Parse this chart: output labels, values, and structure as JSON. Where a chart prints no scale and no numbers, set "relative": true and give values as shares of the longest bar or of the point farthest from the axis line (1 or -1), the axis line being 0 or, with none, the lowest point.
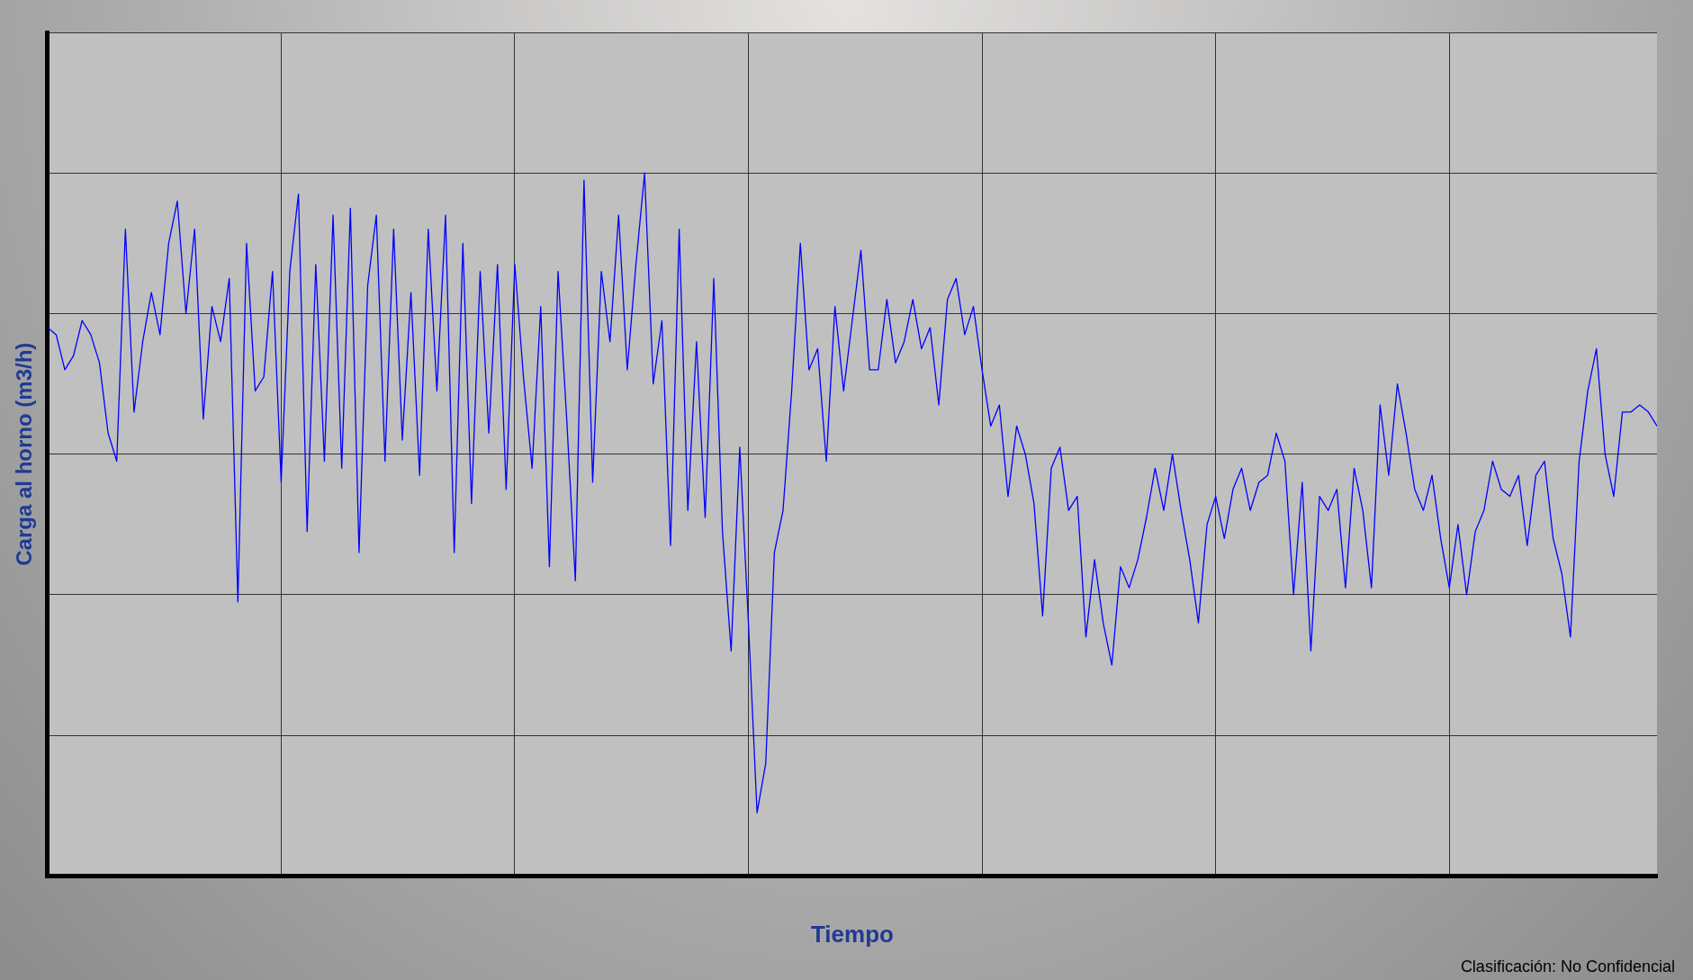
{
  "chart_data": {
    "type": "line",
    "relative": true,
    "xlabel": "Tiempo",
    "ylabel": "Carga al horno (m3/h)",
    "grid": true,
    "legend": false,
    "marker": "none",
    "line_style": "solid",
    "annotations": [
      "Clasificación: No Confidencial"
    ],
    "categories": [
      null,
      null,
      null,
      null,
      null,
      null,
      null,
      null,
      null,
      null,
      null,
      null,
      null,
      null,
      null,
      null,
      null,
      null,
      null,
      null,
      null,
      null,
      null,
      null,
      null,
      null,
      null,
      null,
      null,
      null,
      null,
      null,
      null,
      null,
      null,
      null,
      null,
      null,
      null,
      null,
      null,
      null,
      null,
      null,
      null,
      null,
      null,
      null,
      null,
      null,
      null,
      null,
      null,
      null,
      null,
      null,
      null,
      null,
      null,
      null,
      null,
      null,
      null,
      null,
      null,
      null,
      null,
      null,
      null,
      null,
      null,
      null,
      null,
      null,
      null,
      null,
      null,
      null,
      null,
      null,
      null,
      null,
      null,
      null,
      null,
      null,
      null,
      null,
      null,
      null,
      null,
      null,
      null,
      null,
      null,
      null,
      null,
      null,
      null,
      null,
      null,
      null,
      null,
      null,
      null,
      null,
      null,
      null,
      null,
      null,
      null,
      null,
      null,
      null,
      null,
      null,
      null,
      null,
      null,
      null,
      null,
      null,
      null,
      null,
      null,
      null,
      null,
      null,
      null,
      null,
      null,
      null,
      null,
      null,
      null,
      null,
      null,
      null,
      null,
      null,
      null,
      null,
      null,
      null,
      null,
      null,
      null,
      null,
      null,
      null,
      null,
      null,
      null,
      null,
      null,
      null,
      null,
      null,
      null,
      null,
      null,
      null,
      null,
      null,
      null,
      null,
      null,
      null,
      null,
      null,
      null,
      null,
      null,
      null,
      null,
      null,
      null,
      null,
      null,
      null,
      null,
      null,
      null,
      null,
      null,
      null,
      null
    ],
    "series": [
      {
        "color": "#0000ff",
        "values": [
          0.78,
          0.77,
          0.72,
          0.74,
          0.79,
          0.77,
          0.73,
          0.63,
          0.59,
          0.92,
          0.66,
          0.76,
          0.83,
          0.77,
          0.9,
          0.96,
          0.8,
          0.92,
          0.65,
          0.81,
          0.76,
          0.85,
          0.39,
          0.9,
          0.69,
          0.71,
          0.86,
          0.56,
          0.86,
          0.97,
          0.49,
          0.87,
          0.59,
          0.94,
          0.58,
          0.95,
          0.46,
          0.84,
          0.94,
          0.59,
          0.92,
          0.62,
          0.83,
          0.57,
          0.92,
          0.69,
          0.94,
          0.46,
          0.9,
          0.53,
          0.86,
          0.63,
          0.87,
          0.55,
          0.87,
          0.71,
          0.58,
          0.81,
          0.44,
          0.86,
          0.65,
          0.42,
          0.99,
          0.56,
          0.86,
          0.76,
          0.94,
          0.72,
          0.87,
          1.0,
          0.7,
          0.79,
          0.47,
          0.92,
          0.52,
          0.76,
          0.51,
          0.85,
          0.49,
          0.32,
          0.61,
          0.36,
          0.09,
          0.16,
          0.46,
          0.52,
          0.69,
          0.9,
          0.72,
          0.75,
          0.59,
          0.81,
          0.69,
          0.79,
          0.89,
          0.72,
          0.72,
          0.82,
          0.73,
          0.76,
          0.82,
          0.75,
          0.78,
          0.67,
          0.82,
          0.85,
          0.77,
          0.81,
          0.72,
          0.64,
          0.67,
          0.54,
          0.64,
          0.6,
          0.53,
          0.37,
          0.58,
          0.61,
          0.52,
          0.54,
          0.34,
          0.45,
          0.36,
          0.3,
          0.44,
          0.41,
          0.45,
          0.51,
          0.58,
          0.52,
          0.6,
          0.52,
          0.45,
          0.36,
          0.5,
          0.54,
          0.48,
          0.55,
          0.58,
          0.52,
          0.56,
          0.57,
          0.63,
          0.59,
          0.4,
          0.56,
          0.32,
          0.54,
          0.52,
          0.55,
          0.41,
          0.58,
          0.52,
          0.41,
          0.67,
          0.57,
          0.7,
          0.63,
          0.55,
          0.52,
          0.57,
          0.48,
          0.41,
          0.5,
          0.4,
          0.49,
          0.52,
          0.59,
          0.55,
          0.54,
          0.57,
          0.47,
          0.57,
          0.59,
          0.48,
          0.43,
          0.34,
          0.59,
          0.69,
          0.75,
          0.6,
          0.54,
          0.66,
          0.66,
          0.67,
          0.66,
          0.64
        ]
      }
    ]
  }
}
